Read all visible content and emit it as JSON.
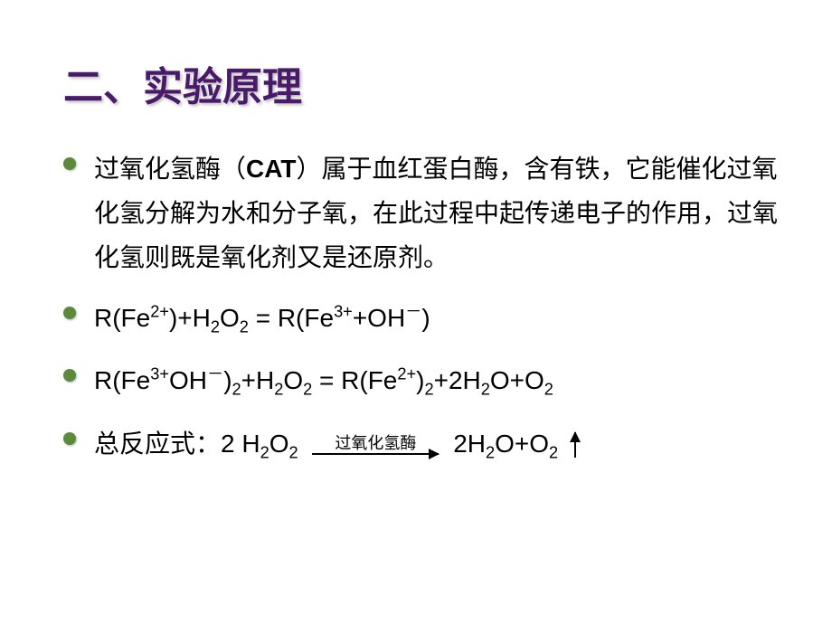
{
  "colors": {
    "title": "#4a1a6a",
    "bullet": "#5a8a3a",
    "text": "#000000",
    "background": "#ffffff"
  },
  "title": "二、实验原理",
  "bullets": {
    "intro": {
      "pre": "过氧化氢酶（",
      "bold": "CAT",
      "post": "）属于血红蛋白酶，含有铁，它能催化过氧化氢分解为水和分子氧，在此过程中起传递电子的作用，过氧化氢则既是氧化剂又是还原剂。"
    },
    "eq1": {
      "lhs_prefix": "R(Fe",
      "lhs_sup": "2+",
      "lhs_close": ")+H",
      "h2o2_sub1": "2",
      "o": "O",
      "h2o2_sub2": "2",
      "eq": " = R(Fe",
      "rhs_sup": "3+",
      "rhs_plus": "+OH",
      "rhs_sup2": "－",
      "rhs_close": ")"
    },
    "eq2": {
      "p1": "R(Fe",
      "sup1": "3+",
      "p2": "OH",
      "sup2": "－",
      "p3": ")",
      "sub1": "2",
      "p4": "+H",
      "sub2": "2",
      "p5": "O",
      "sub3": "2",
      "eq": " = R(Fe",
      "sup3": "2+",
      "p6": ")",
      "sub4": "2",
      "p7": "+2H",
      "sub5": "2",
      "p8": "O+O",
      "sub6": "2"
    },
    "total": {
      "label": "总反应式：",
      "lhs1": "2 H",
      "lhs_sub1": "2",
      "lhs2": "O",
      "lhs_sub2": "2",
      "arrow_label": "过氧化氢酶",
      "rhs1": " 2H",
      "rhs_sub1": "2",
      "rhs2": "O+O",
      "rhs_sub2": "2"
    }
  }
}
